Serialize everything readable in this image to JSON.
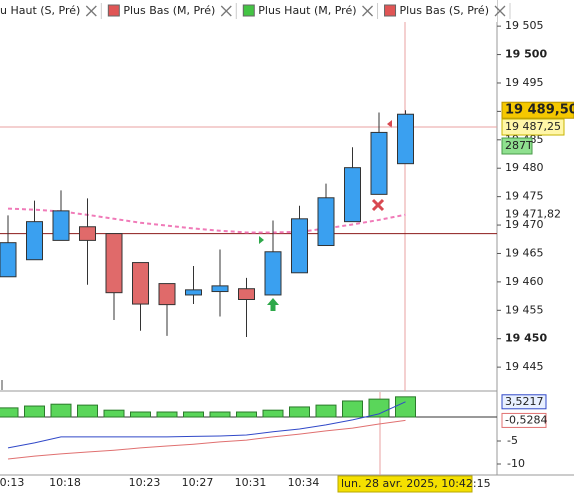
{
  "chart_data": {
    "type": "candlestick",
    "legend": [
      {
        "label": "u Haut (S, Pré)",
        "color": null
      },
      {
        "label": "Plus Bas (M, Pré)",
        "color": "#e05555"
      },
      {
        "label": "Plus Haut (M, Pré)",
        "color": "#44c444"
      },
      {
        "label": "Plus Bas (S, Pré)",
        "color": "#e05555"
      }
    ],
    "categories": [
      "0:13",
      null,
      "10:18",
      null,
      null,
      "10:23",
      null,
      "10:27",
      null,
      "10:31",
      null,
      "10:34",
      null,
      null,
      null,
      null
    ],
    "cursor_label": "lun. 28 avr. 2025, 10:42:15",
    "series": {
      "open": [
        19460.9,
        19463.9,
        19467.3,
        19469.7,
        19468.5,
        19463.4,
        19459.7,
        19457.7,
        19458.3,
        19458.8,
        19457.7,
        19461.6,
        19466.4,
        19470.6,
        19475.4,
        19480.8
      ],
      "high": [
        19471.7,
        19474.3,
        19476.1,
        19474.7,
        19468.5,
        19463.4,
        19459.7,
        19462.8,
        19465.7,
        19460.7,
        19470.8,
        19473.4,
        19477.3,
        19483.7,
        19489.8,
        19490.2
      ],
      "low": [
        19460.9,
        19463.9,
        19467.3,
        19459.5,
        19453.3,
        19451.4,
        19450.5,
        19456.1,
        19453.9,
        19450.3,
        19457.7,
        19461.6,
        19466.4,
        19470.6,
        19475.4,
        19480.8
      ],
      "close": [
        19466.9,
        19470.6,
        19472.5,
        19467.3,
        19458.1,
        19456.1,
        19456.0,
        19458.6,
        19459.3,
        19456.9,
        19465.3,
        19471.1,
        19474.8,
        19480.1,
        19486.3,
        19489.5
      ],
      "up_color": "#3aa0f0",
      "down_color": "#e06a6a"
    },
    "moving_average": {
      "color": "#f07ab8",
      "values": [
        19472.9,
        19472.7,
        19472.4,
        19471.8,
        19471.1,
        19470.4,
        19469.9,
        19469.4,
        19469.0,
        19468.7,
        19468.7,
        19468.8,
        19469.4,
        19470.1,
        19470.9,
        19471.82
      ],
      "last_label": "19 471,82"
    },
    "hlines": [
      {
        "value": 19487.25,
        "label": "19 487,25",
        "color": "#e8a0a0"
      },
      {
        "value": 19468.5,
        "color": "#8b1a1a"
      }
    ],
    "last_price": {
      "value": 19489.5,
      "label": "19 489,50"
    },
    "volume_label": "287T",
    "ylim": [
      19440.8,
      19509.6
    ],
    "yticks": [
      {
        "value": 19505,
        "label": "19 505"
      },
      {
        "value": 19500,
        "label": "19 500"
      },
      {
        "value": 19495,
        "label": "19 495"
      },
      {
        "value": 19490,
        "label": "19 490"
      },
      {
        "value": 19485,
        "label": "19 485"
      },
      {
        "value": 19480,
        "label": "19 480"
      },
      {
        "value": 19475,
        "label": "19 475"
      },
      {
        "value": 19470,
        "label": "19 470"
      },
      {
        "value": 19465,
        "label": "19 465"
      },
      {
        "value": 19460,
        "label": "19 460"
      },
      {
        "value": 19455,
        "label": "19 455"
      },
      {
        "value": 19450,
        "label": "19 450"
      },
      {
        "value": 19445,
        "label": "19 445"
      }
    ],
    "indicator": {
      "ylim": [
        -12.39,
        5.65
      ],
      "yticks": [
        -5,
        -10
      ],
      "histogram": {
        "color": "#5ad65a",
        "values": [
          2.2,
          2.6,
          3.0,
          2.8,
          1.7,
          1.3,
          1.3,
          1.3,
          1.3,
          1.3,
          1.7,
          2.4,
          2.8,
          3.7,
          4.1,
          4.6
        ]
      },
      "lines": [
        {
          "color": "#3048c8",
          "values": [
            -6.5,
            -5.4,
            -4.1,
            -4.1,
            -4.1,
            -4.1,
            -4.1,
            -4.0,
            -3.9,
            -3.7,
            -3.0,
            -2.4,
            -1.5,
            -0.4,
            0.9,
            3.5217
          ],
          "last_label": "3,5217"
        },
        {
          "color": "#e07070",
          "values": [
            -8.9,
            -8.3,
            -7.8,
            -7.4,
            -7.0,
            -6.5,
            -6.1,
            -5.7,
            -5.2,
            -4.8,
            -4.1,
            -3.5,
            -2.8,
            -2.2,
            -1.3,
            -0.5284
          ],
          "last_label": "-0,5284"
        }
      ]
    }
  }
}
